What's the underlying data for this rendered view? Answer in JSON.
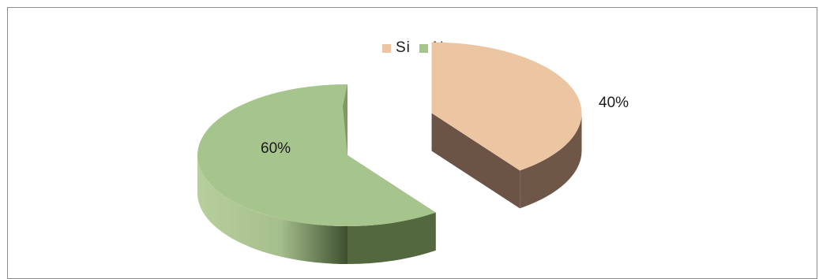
{
  "chart_data": {
    "type": "pie",
    "title": "",
    "categories": [
      "Si",
      "No"
    ],
    "values": [
      40,
      60
    ],
    "data_labels": [
      "40%",
      "60%"
    ],
    "legend_position": "top",
    "style": "3d-exploded",
    "colors": {
      "Si": {
        "top": "#ecc6a3",
        "side": "#6b5445"
      },
      "No": {
        "top": "#a6c58c",
        "side_light": "#b7cf9c",
        "side_dark": "#3d4f30"
      }
    }
  },
  "legend": {
    "items": [
      {
        "label": "Si",
        "color": "#ecc6a3"
      },
      {
        "label": "No",
        "color": "#a6c58c"
      }
    ]
  }
}
